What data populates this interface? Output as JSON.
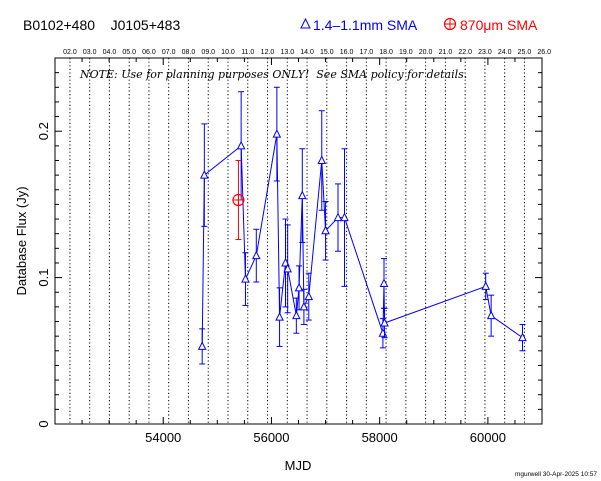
{
  "header": {
    "source_names": "B0102+480    J0105+483",
    "legend_sma_1mm": "1.4–1.1mm SMA",
    "legend_sma_870": "870μm SMA"
  },
  "note": "NOTE: Use for planning purposes ONLY!  See SMA policy for details.",
  "footer": "mgurwell 30-Apr-2025 10:57",
  "colors": {
    "blue": "#0000ff",
    "red": "#ff0000",
    "axis": "#000000"
  },
  "chart_data": {
    "type": "scatter",
    "xlabel": "MJD",
    "ylabel": "Database Flux (Jy)",
    "xlim": [
      52000,
      61000
    ],
    "ylim": [
      0,
      0.25
    ],
    "x_ticks": [
      54000,
      56000,
      58000,
      60000
    ],
    "x_tick_labels": [
      "54000",
      "56000",
      "58000",
      "60000"
    ],
    "y_ticks": [
      0,
      0.1,
      0.2
    ],
    "y_tick_labels": [
      "0",
      "0.1",
      "0.2"
    ],
    "top_axis_labels": [
      "02.0",
      "03.0",
      "04.0",
      "05.0",
      "06.0",
      "07.0",
      "08.0",
      "09.0",
      "10.0",
      "11.0",
      "12.0",
      "13.0",
      "14.0",
      "15.0",
      "16.0",
      "17.0",
      "18.0",
      "19.0",
      "20.0",
      "21.0",
      "22.0",
      "23.0",
      "24.0",
      "25.0",
      "26.0"
    ],
    "top_axis_mjd": [
      52276,
      52641,
      53006,
      53371,
      53736,
      54101,
      54466,
      54832,
      55197,
      55562,
      55927,
      56293,
      56658,
      57023,
      57388,
      57754,
      58119,
      58484,
      58849,
      59215,
      59580,
      59945,
      60310,
      60676,
      61041
    ],
    "grid": "vertical dotted lines at each year",
    "legend_location": "top-right header",
    "series": [
      {
        "name": "1.4–1.1mm SMA",
        "color": "#0000ff",
        "marker": "triangle",
        "connected": true,
        "points": [
          {
            "x": 54720,
            "y": 0.053,
            "err": 0.012
          },
          {
            "x": 54760,
            "y": 0.17,
            "err": 0.035
          },
          {
            "x": 55440,
            "y": 0.19,
            "err": 0.037
          },
          {
            "x": 55520,
            "y": 0.099,
            "err": 0.018
          },
          {
            "x": 55720,
            "y": 0.115,
            "err": 0.018
          },
          {
            "x": 56100,
            "y": 0.198,
            "err": 0.032
          },
          {
            "x": 56150,
            "y": 0.073,
            "err": 0.02
          },
          {
            "x": 56260,
            "y": 0.11,
            "err": 0.03
          },
          {
            "x": 56300,
            "y": 0.106,
            "err": 0.03
          },
          {
            "x": 56460,
            "y": 0.074,
            "err": 0.012
          },
          {
            "x": 56510,
            "y": 0.093,
            "err": 0.015
          },
          {
            "x": 56570,
            "y": 0.156,
            "err": 0.032
          },
          {
            "x": 56600,
            "y": 0.08,
            "err": 0.012
          },
          {
            "x": 56690,
            "y": 0.087,
            "err": 0.016
          },
          {
            "x": 56930,
            "y": 0.18,
            "err": 0.034
          },
          {
            "x": 57000,
            "y": 0.132,
            "err": 0.02
          },
          {
            "x": 57230,
            "y": 0.141,
            "err": 0.023
          },
          {
            "x": 57350,
            "y": 0.141,
            "err": 0.047
          },
          {
            "x": 58060,
            "y": 0.062,
            "err": 0.01
          },
          {
            "x": 58080,
            "y": 0.096,
            "err": 0.017
          },
          {
            "x": 58090,
            "y": 0.069,
            "err": 0.01
          },
          {
            "x": 59960,
            "y": 0.094,
            "err": 0.009
          },
          {
            "x": 60060,
            "y": 0.074,
            "err": 0.014
          },
          {
            "x": 60640,
            "y": 0.059,
            "err": 0.009
          }
        ]
      },
      {
        "name": "870μm SMA",
        "color": "#ff0000",
        "marker": "circle-plus",
        "connected": false,
        "points": [
          {
            "x": 55390,
            "y": 0.153,
            "err": 0.027
          }
        ]
      }
    ]
  }
}
